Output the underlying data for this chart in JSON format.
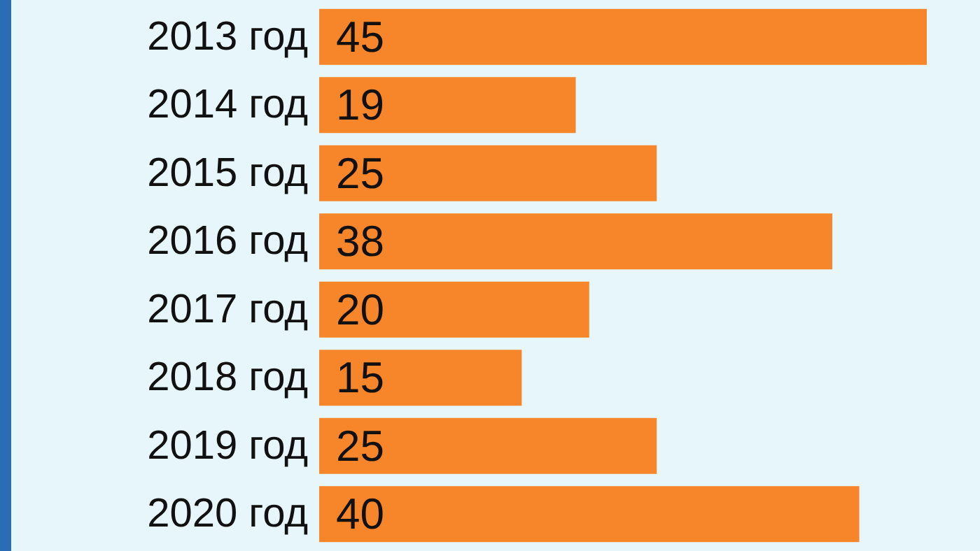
{
  "chart_data": {
    "type": "bar",
    "orientation": "horizontal",
    "categories": [
      "2013 год",
      "2014 год",
      "2015 год",
      "2016 год",
      "2017 год",
      "2018 год",
      "2019 год",
      "2020 год"
    ],
    "values": [
      45,
      19,
      25,
      38,
      20,
      15,
      25,
      40
    ],
    "color": "#f7862a",
    "data_labels": true
  }
}
